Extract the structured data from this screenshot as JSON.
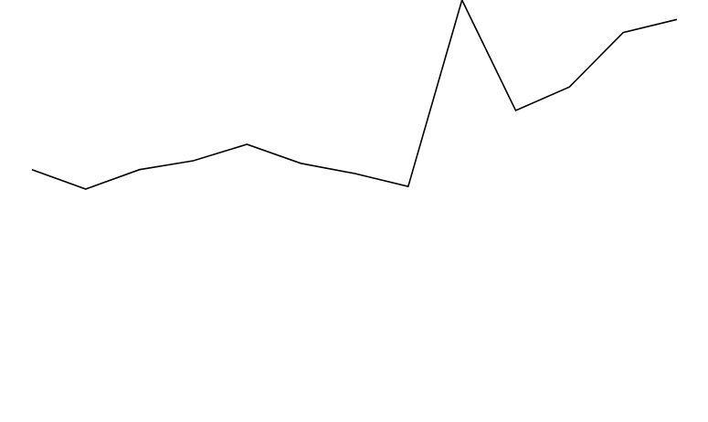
{
  "chart_data": {
    "type": "line",
    "title": "",
    "xlabel": "",
    "ylabel": "",
    "grid": false,
    "legend": "none",
    "x": [
      1,
      2,
      3,
      4,
      5,
      6,
      7,
      8,
      9,
      10,
      11,
      12,
      13
    ],
    "xlim": [
      1,
      13
    ],
    "ylim": [
      0,
      100
    ],
    "series": [
      {
        "color": "#000000",
        "values": [
          59.8,
          55.2,
          59.8,
          61.9,
          65.8,
          61.3,
          58.9,
          55.8,
          100,
          73.8,
          79.4,
          92.3,
          95.4
        ]
      }
    ]
  }
}
